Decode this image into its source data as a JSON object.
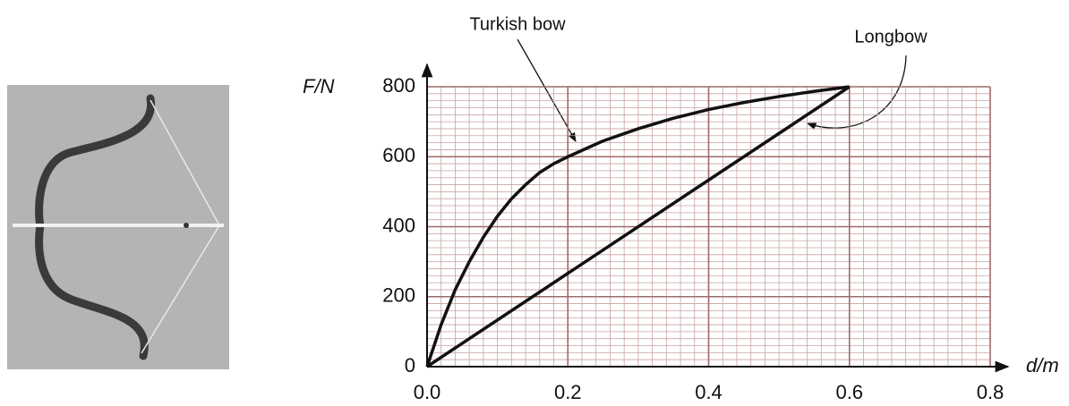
{
  "chart_data": {
    "type": "line",
    "x_label": "d/m",
    "y_label": "F/N",
    "xlim": [
      0,
      0.8
    ],
    "ylim": [
      0,
      800
    ],
    "xticks": [
      {
        "value": 0,
        "label": "0.0"
      },
      0.2,
      0.4,
      0.6,
      0.8
    ],
    "yticks": [
      0,
      200,
      400,
      600,
      800
    ],
    "grid": true,
    "minor_grid": {
      "x": 0.02,
      "y": 20
    },
    "series": [
      {
        "name": "Turkish bow",
        "color": "#111111",
        "x": [
          0,
          0.02,
          0.04,
          0.06,
          0.08,
          0.1,
          0.12,
          0.14,
          0.16,
          0.18,
          0.2,
          0.25,
          0.3,
          0.35,
          0.4,
          0.45,
          0.5,
          0.55,
          0.6
        ],
        "values": [
          0,
          120,
          220,
          300,
          370,
          430,
          480,
          520,
          555,
          580,
          600,
          645,
          680,
          710,
          735,
          755,
          772,
          787,
          800
        ]
      },
      {
        "name": "Longbow",
        "color": "#111111",
        "x": [
          0,
          0.6
        ],
        "values": [
          0,
          800
        ]
      }
    ]
  }
}
